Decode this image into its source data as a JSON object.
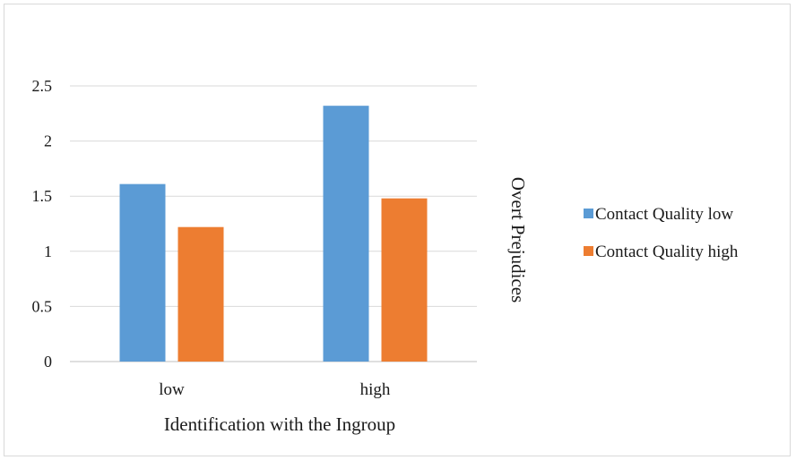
{
  "chart_data": {
    "type": "bar",
    "categories": [
      "low",
      "high"
    ],
    "series": [
      {
        "name": "Contact Quality low",
        "values": [
          1.61,
          2.32
        ],
        "color": "#5b9bd5"
      },
      {
        "name": "Contact Quality high",
        "values": [
          1.22,
          1.48
        ],
        "color": "#ed7d31"
      }
    ],
    "xlabel": "Identification with the Ingroup",
    "ylabel": "Overt Prejudices",
    "ylim": [
      0,
      2.5
    ],
    "yticks": [
      0,
      0.5,
      1,
      1.5,
      2,
      2.5
    ],
    "ytick_labels": [
      "0",
      "0.5",
      "1",
      "1.5",
      "2",
      "2.5"
    ],
    "grid": true,
    "legend_position": "right"
  }
}
